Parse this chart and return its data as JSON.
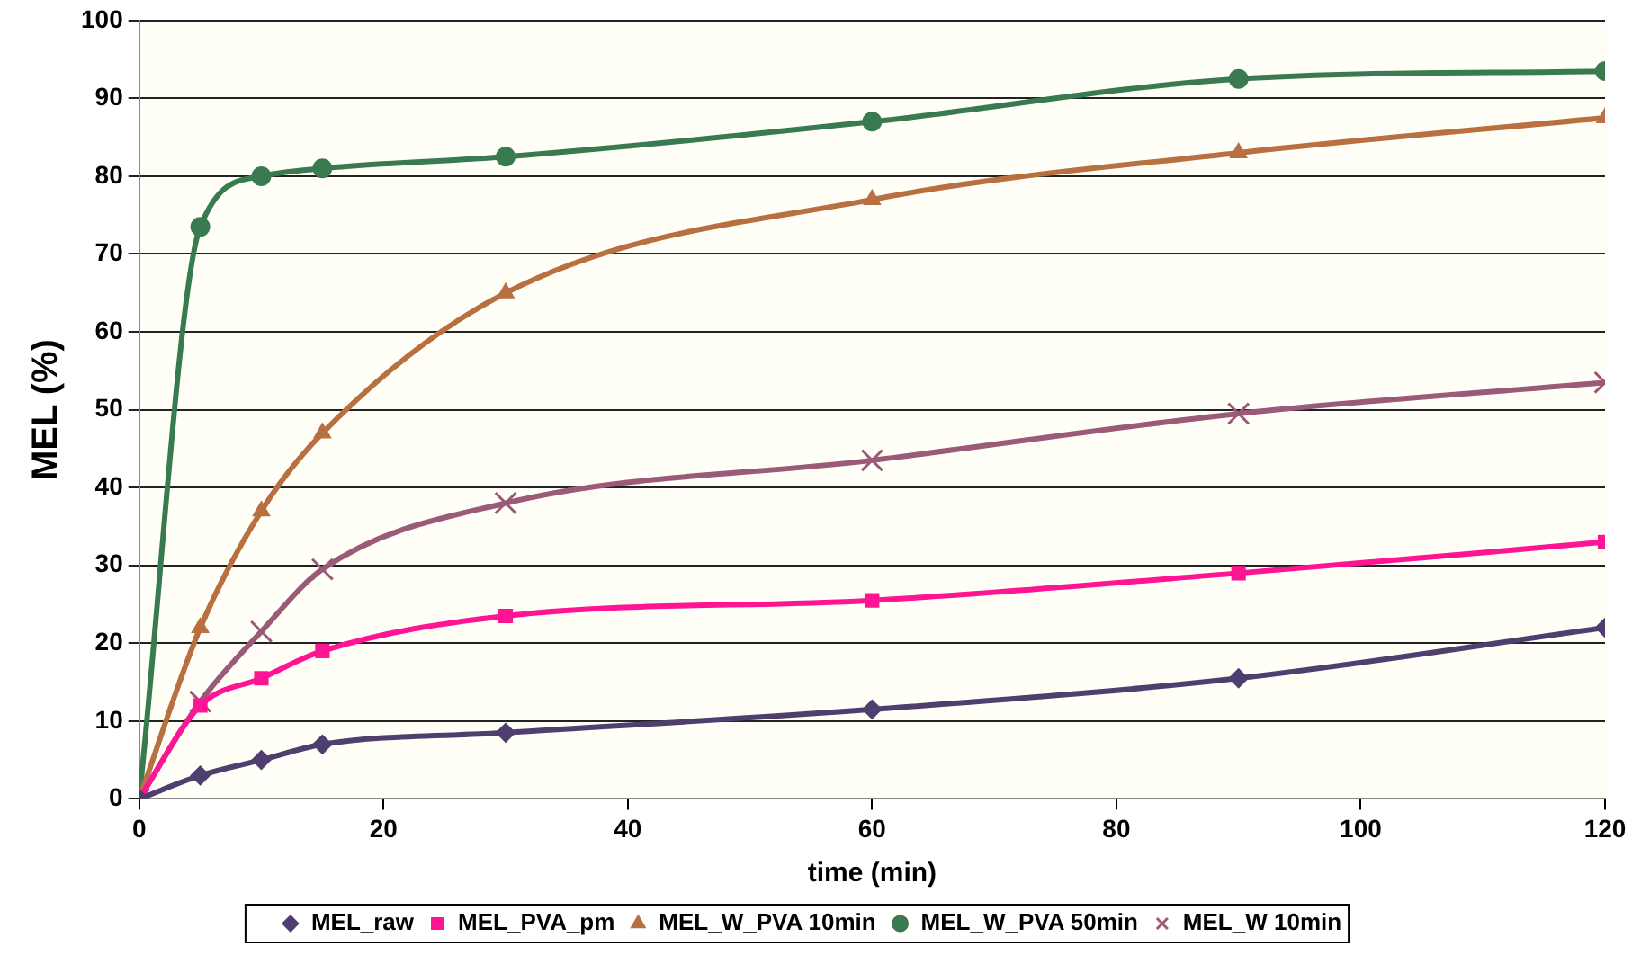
{
  "chart_data": {
    "type": "line",
    "xlabel": "time (min)",
    "ylabel": "MEL (%)",
    "x": [
      0,
      5,
      10,
      15,
      30,
      60,
      90,
      120
    ],
    "xlim": [
      0,
      120
    ],
    "xticks": [
      0,
      20,
      40,
      60,
      80,
      100,
      120
    ],
    "ylim": [
      0,
      100
    ],
    "yticks": [
      0,
      10,
      20,
      30,
      40,
      50,
      60,
      70,
      80,
      90,
      100
    ],
    "grid": "y",
    "legend": "bottom",
    "series": [
      {
        "name": "MEL_raw",
        "color": "#4f3f6e",
        "marker": "diamond",
        "values": [
          0,
          3,
          5,
          7,
          8.5,
          11.5,
          15.5,
          22
        ]
      },
      {
        "name": "MEL_PVA_pm",
        "color": "#ff1493",
        "marker": "square",
        "values": [
          0,
          12,
          15.5,
          19,
          23.5,
          25.5,
          29,
          33
        ]
      },
      {
        "name": "MEL_W_PVA 10min",
        "color": "#b87040",
        "marker": "triangle",
        "values": [
          0,
          22,
          37,
          47,
          65,
          77,
          83,
          87.5
        ]
      },
      {
        "name": "MEL_W_PVA 50min",
        "color": "#3a7a50",
        "marker": "circle",
        "values": [
          0,
          73.5,
          80,
          81,
          82.5,
          87,
          92.5,
          93.5
        ]
      },
      {
        "name": "MEL_W 10min",
        "color": "#9a5a78",
        "marker": "cross",
        "values": [
          0,
          12.5,
          21.5,
          29.5,
          38,
          43.5,
          49.5,
          53.5
        ]
      }
    ]
  }
}
